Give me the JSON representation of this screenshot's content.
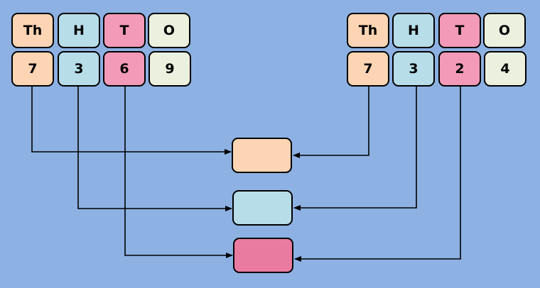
{
  "colors": {
    "background": "#8db1e2",
    "thousands": "#fed5b4",
    "hundreds": "#b6dde8",
    "tens": "#f29ab7",
    "ones": "#ebf1de",
    "result_tens": "#ea7ba0"
  },
  "left_number": {
    "headers": [
      "Th",
      "H",
      "T",
      "O"
    ],
    "digits": [
      "7",
      "3",
      "6",
      "9"
    ]
  },
  "right_number": {
    "headers": [
      "Th",
      "H",
      "T",
      "O"
    ],
    "digits": [
      "7",
      "3",
      "2",
      "4"
    ]
  },
  "comparison_boxes": [
    "thousands",
    "hundreds",
    "tens"
  ]
}
